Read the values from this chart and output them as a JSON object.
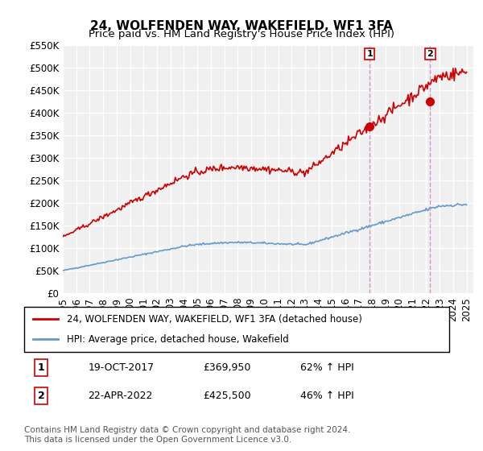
{
  "title": "24, WOLFENDEN WAY, WAKEFIELD, WF1 3FA",
  "subtitle": "Price paid vs. HM Land Registry's House Price Index (HPI)",
  "ylabel": "",
  "ylim": [
    0,
    550000
  ],
  "yticks": [
    0,
    50000,
    100000,
    150000,
    200000,
    250000,
    300000,
    350000,
    400000,
    450000,
    500000,
    550000
  ],
  "ytick_labels": [
    "£0",
    "£50K",
    "£100K",
    "£150K",
    "£200K",
    "£250K",
    "£300K",
    "£350K",
    "£400K",
    "£450K",
    "£500K",
    "£550K"
  ],
  "xlim_start": 1995.0,
  "xlim_end": 2025.5,
  "background_color": "#ffffff",
  "plot_bg_color": "#f0f0f0",
  "grid_color": "#ffffff",
  "red_line_color": "#cc0000",
  "blue_line_color": "#6699cc",
  "marker1_x": 2017.8,
  "marker1_y": 369950,
  "marker2_x": 2022.3,
  "marker2_y": 425500,
  "vline_color": "#cc99cc",
  "legend_label_red": "24, WOLFENDEN WAY, WAKEFIELD, WF1 3FA (detached house)",
  "legend_label_blue": "HPI: Average price, detached house, Wakefield",
  "transaction1_num": "1",
  "transaction1_date": "19-OCT-2017",
  "transaction1_price": "£369,950",
  "transaction1_hpi": "62% ↑ HPI",
  "transaction2_num": "2",
  "transaction2_date": "22-APR-2022",
  "transaction2_price": "£425,500",
  "transaction2_hpi": "46% ↑ HPI",
  "footer": "Contains HM Land Registry data © Crown copyright and database right 2024.\nThis data is licensed under the Open Government Licence v3.0.",
  "title_fontsize": 11,
  "subtitle_fontsize": 9.5,
  "tick_fontsize": 8.5,
  "legend_fontsize": 8.5,
  "footer_fontsize": 7.5
}
